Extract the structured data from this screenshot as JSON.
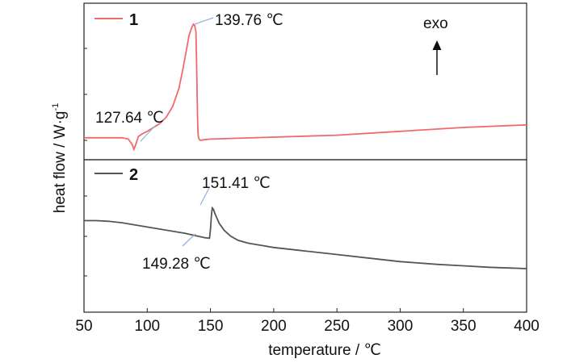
{
  "chart_data": {
    "type": "line",
    "xlabel": "temperature / ℃",
    "ylabel_main": "heat flow / W·g",
    "ylabel_sup": "-1",
    "xlim": [
      50,
      400
    ],
    "xticks": [
      50,
      100,
      150,
      200,
      250,
      300,
      350,
      400
    ],
    "grid": false,
    "exo_label": "exo",
    "panels": [
      {
        "series_name": "1",
        "color": "#f06a6a",
        "ylim": [
          0,
          100
        ],
        "x": [
          50,
          70,
          80,
          85,
          88,
          89.5,
          91,
          93,
          96,
          100,
          105,
          110,
          115,
          120,
          125,
          128,
          131,
          133,
          135,
          136.5,
          137.5,
          138.5,
          139.2,
          139.76,
          140.2,
          140.6,
          141,
          142,
          145,
          150,
          200,
          250,
          300,
          350,
          400
        ],
        "y": [
          12,
          12,
          12,
          11,
          7,
          3,
          7,
          13,
          15,
          17,
          20,
          23,
          28,
          36,
          50,
          64,
          80,
          91,
          97,
          100,
          99,
          94,
          60,
          30,
          15,
          12,
          11,
          10,
          10.5,
          11,
          12.5,
          14,
          17,
          20,
          22
        ]
      },
      {
        "series_name": "2",
        "color": "#555555",
        "ylim": [
          0,
          100
        ],
        "x": [
          50,
          60,
          70,
          80,
          90,
          100,
          110,
          120,
          130,
          140,
          145,
          149.28,
          150,
          150.8,
          151.41,
          152.3,
          154,
          157,
          161,
          166,
          172,
          180,
          190,
          200,
          220,
          250,
          280,
          300,
          330,
          350,
          370,
          400
        ],
        "y": [
          58,
          58,
          57.5,
          56.5,
          55,
          53.5,
          52,
          50.5,
          49,
          47,
          46,
          45.5,
          52,
          62,
          67,
          66,
          62,
          56,
          51,
          47,
          44,
          42,
          40.5,
          39,
          37,
          34,
          31,
          29,
          27,
          26,
          25,
          24
        ]
      }
    ],
    "annotations": [
      {
        "panel": 0,
        "text": "127.64 ℃",
        "x": 127.64
      },
      {
        "panel": 0,
        "text": "139.76 ℃",
        "x": 139.76
      },
      {
        "panel": 1,
        "text": "151.41 ℃",
        "x": 151.41
      },
      {
        "panel": 1,
        "text": "149.28 ℃",
        "x": 149.28
      }
    ]
  }
}
